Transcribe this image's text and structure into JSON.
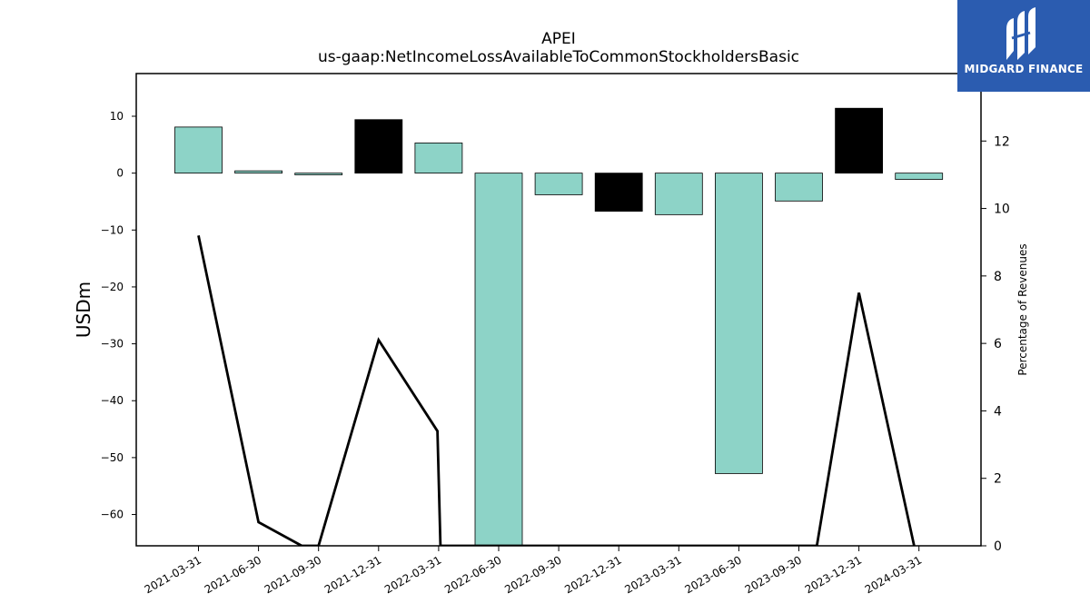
{
  "chart_data": {
    "type": "bar",
    "title": "APEI",
    "subtitle": "us-gaap:NetIncomeLossAvailableToCommonStockholdersBasic",
    "ylabel": "USDm",
    "y2label": "Percentage of Revenues",
    "categories": [
      "2021-03-31",
      "2021-06-30",
      "2021-09-30",
      "2021-12-31",
      "2022-03-31",
      "2022-06-30",
      "2022-09-30",
      "2022-12-31",
      "2023-03-31",
      "2023-06-30",
      "2023-09-30",
      "2023-12-31",
      "2024-03-31"
    ],
    "values": [
      8.1,
      0.4,
      -0.3,
      9.4,
      5.3,
      -65.5,
      -3.8,
      -6.7,
      -7.3,
      -52.8,
      -4.9,
      11.4,
      -1.1
    ],
    "bar_colors": [
      "#8dd3c7",
      "#8dd3c7",
      "#8dd3c7",
      "#000000",
      "#8dd3c7",
      "#8dd3c7",
      "#8dd3c7",
      "#000000",
      "#8dd3c7",
      "#8dd3c7",
      "#8dd3c7",
      "#000000",
      "#8dd3c7"
    ],
    "ylim": [
      -65.5,
      17.5
    ],
    "yticks": [
      10,
      0,
      -10,
      -20,
      -30,
      -40,
      -50,
      -60
    ],
    "y2lim": [
      0,
      14
    ],
    "y2ticks": [
      0,
      2,
      4,
      6,
      8,
      10,
      12
    ],
    "line_series": {
      "name": "",
      "x": [
        0,
        1,
        1.72,
        2,
        3,
        3.98,
        4.03,
        10.3,
        11,
        11.92
      ],
      "values": [
        9.2,
        0.7,
        0,
        0,
        6.1,
        3.4,
        0,
        0,
        7.5,
        0
      ],
      "color": "#000000"
    },
    "grid": false,
    "legend": "none"
  },
  "logo": {
    "text": "MIDGARD FINANCE",
    "icon": "midgard-logo-icon"
  }
}
